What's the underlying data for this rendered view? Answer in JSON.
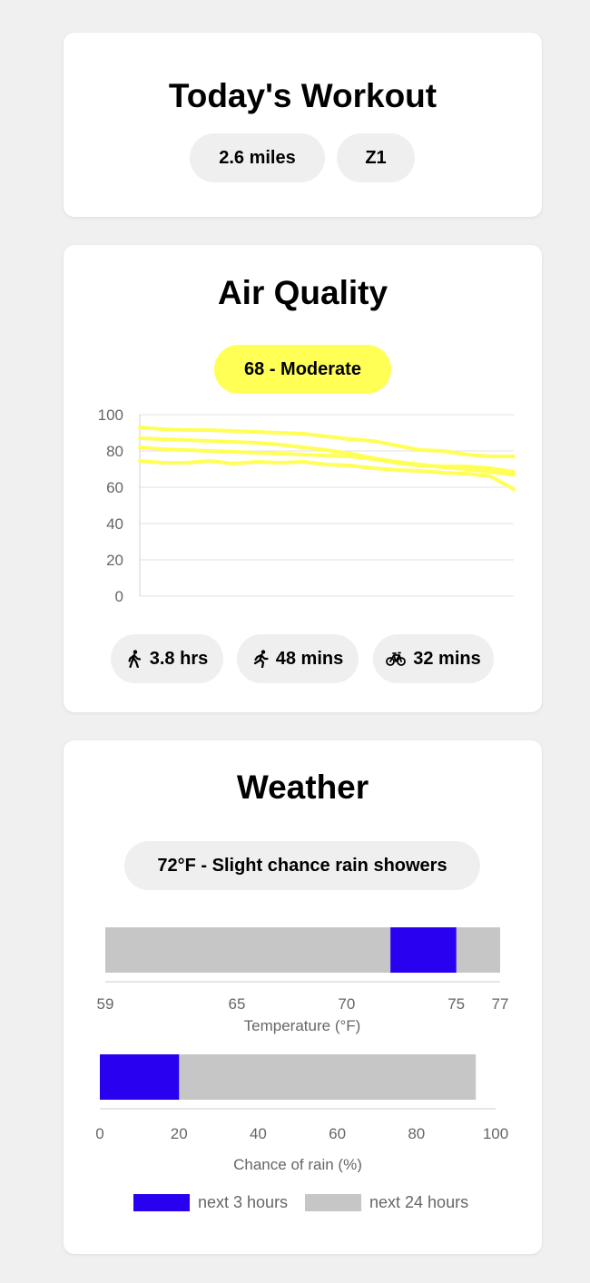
{
  "workout": {
    "title": "Today's Workout",
    "distance": "2.6 miles",
    "zone": "Z1"
  },
  "air_quality": {
    "title": "Air Quality",
    "status": "68 - Moderate",
    "accent": "#ffff55",
    "activities": [
      {
        "icon": "walk-icon",
        "value": "3.8 hrs"
      },
      {
        "icon": "run-icon",
        "value": "48 mins"
      },
      {
        "icon": "bike-icon",
        "value": "32 mins"
      }
    ]
  },
  "weather": {
    "title": "Weather",
    "status": "72°F - Slight chance rain showers"
  },
  "chart_data": [
    {
      "type": "line",
      "title": "",
      "xlabel": "",
      "ylabel": "",
      "ylim": [
        0,
        100
      ],
      "yticks": [
        "0",
        "20",
        "40",
        "60",
        "80",
        "100"
      ],
      "grid": true,
      "line_color": "#ffff55",
      "series": [
        {
          "values": [
            93,
            92,
            91.5,
            91.5,
            91,
            90.5,
            90,
            89.5,
            88,
            86.5,
            85.5,
            83,
            80.5,
            80,
            78,
            77,
            77
          ]
        },
        {
          "values": [
            87,
            86.5,
            86,
            85.5,
            85,
            84.5,
            83.5,
            82,
            80.5,
            78.5,
            76,
            74,
            72.5,
            71,
            70,
            68.5,
            67
          ]
        },
        {
          "values": [
            82,
            81,
            80.5,
            80,
            79.5,
            79,
            78.5,
            78,
            77.5,
            77,
            75.5,
            73.5,
            72,
            71.5,
            71.5,
            70.5,
            68.5
          ]
        },
        {
          "values": [
            74.5,
            73.5,
            73.5,
            74.5,
            73,
            74,
            73.5,
            74,
            72.5,
            72,
            70.5,
            69.5,
            69,
            68,
            67.5,
            66,
            59
          ]
        }
      ]
    },
    {
      "type": "bar",
      "orientation": "horizontal",
      "xlabel": "Temperature (°F)",
      "xlim": [
        59,
        77
      ],
      "xticks": [
        "59",
        "65",
        "70",
        "75",
        "77"
      ],
      "next_24_hours": [
        59,
        77
      ],
      "next_3_hours": [
        72,
        75
      ]
    },
    {
      "type": "bar",
      "orientation": "horizontal",
      "xlabel": "Chance of rain (%)",
      "xlim": [
        0,
        100
      ],
      "xticks": [
        "0",
        "20",
        "40",
        "60",
        "80",
        "100"
      ],
      "next_24_hours": [
        0,
        95
      ],
      "next_3_hours": [
        0,
        20
      ]
    }
  ],
  "legend": {
    "items": [
      {
        "label": "next 3 hours",
        "color": "#2a00f0"
      },
      {
        "label": "next 24 hours",
        "color": "#c6c6c6"
      }
    ]
  }
}
